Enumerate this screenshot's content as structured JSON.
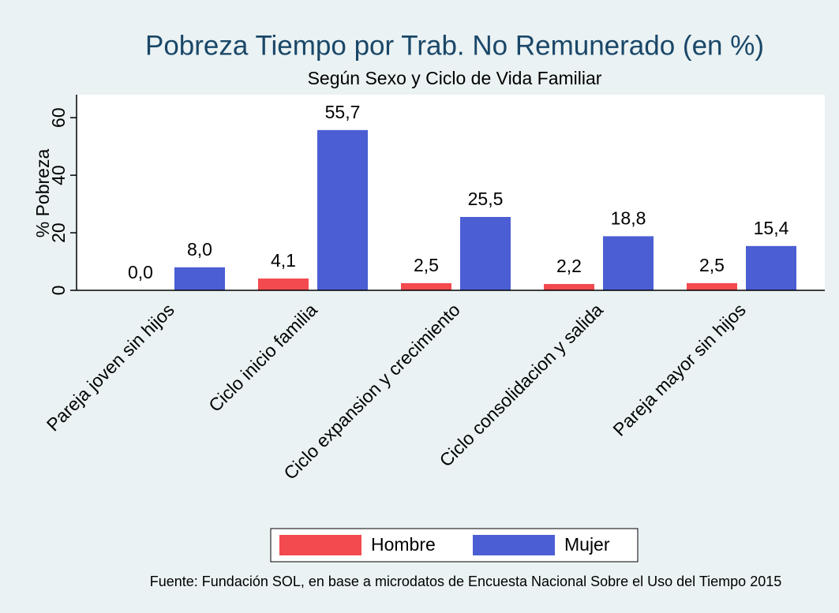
{
  "chart_data": {
    "type": "bar",
    "title": "Pobreza Tiempo por Trab. No Remunerado (en %)",
    "subtitle": "Según Sexo y Ciclo de Vida Familiar",
    "y_label": "% Pobreza",
    "note": "Fuente: Fundación SOL, en base a microdatos de Encuesta Nacional Sobre el Uso del Tiempo 2015",
    "categories": [
      "Pareja joven sin hijos",
      "Ciclo inicio familia",
      "Ciclo expansion y crecimiento",
      "Ciclo consolidacion y salida",
      "Pareja mayor sin hijos"
    ],
    "series": [
      {
        "name": "Hombre",
        "color": "#f24a4f",
        "values": [
          0.0,
          4.1,
          2.5,
          2.2,
          2.5
        ],
        "value_labels": [
          "0,0",
          "4,1",
          "2,5",
          "2,2",
          "2,5"
        ]
      },
      {
        "name": "Mujer",
        "color": "#4b5ed3",
        "values": [
          8.0,
          55.7,
          25.5,
          18.8,
          15.4
        ],
        "value_labels": [
          "8,0",
          "55,7",
          "25,5",
          "18,8",
          "15,4"
        ]
      }
    ],
    "ylim": [
      0,
      68
    ],
    "yticks": [
      0,
      20,
      40,
      60
    ],
    "legend": "bottom"
  }
}
